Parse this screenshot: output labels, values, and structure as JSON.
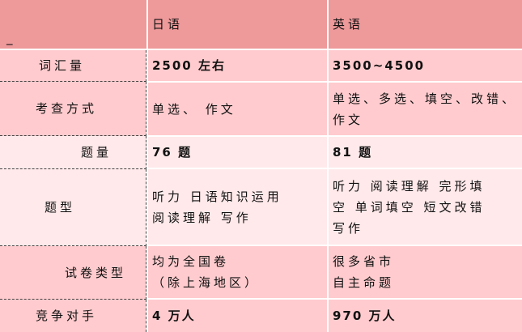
{
  "header": {
    "corner": "_",
    "col_japanese": "日语",
    "col_english": "英语"
  },
  "rows": [
    {
      "label": "词汇量",
      "japanese": [
        "2500 左右"
      ],
      "english": [
        "3500~4500"
      ]
    },
    {
      "label": "考查方式",
      "japanese": [
        "单选、 作文"
      ],
      "english": [
        "单选、多选、填空、改错、",
        "作文"
      ]
    },
    {
      "label": "题量",
      "japanese": [
        "76 题"
      ],
      "english": [
        "81 题"
      ]
    },
    {
      "label": "题型",
      "japanese": [
        "听力 日语知识运用",
        "阅读理解 写作"
      ],
      "english": [
        "听力 阅读理解 完形填",
        "空 单词填空 短文改错",
        "写作"
      ]
    },
    {
      "label": "试卷类型",
      "japanese": [
        "均为全国卷",
        "（除上海地区）"
      ],
      "english": [
        "很多省市",
        "自主命题"
      ]
    },
    {
      "label": "竞争对手",
      "japanese": [
        "4 万人"
      ],
      "english": [
        "970 万人"
      ]
    }
  ],
  "colors": {
    "header": "#EE999A",
    "row_dark": "#FFCBCE",
    "row_light": "#FFE9EA"
  }
}
